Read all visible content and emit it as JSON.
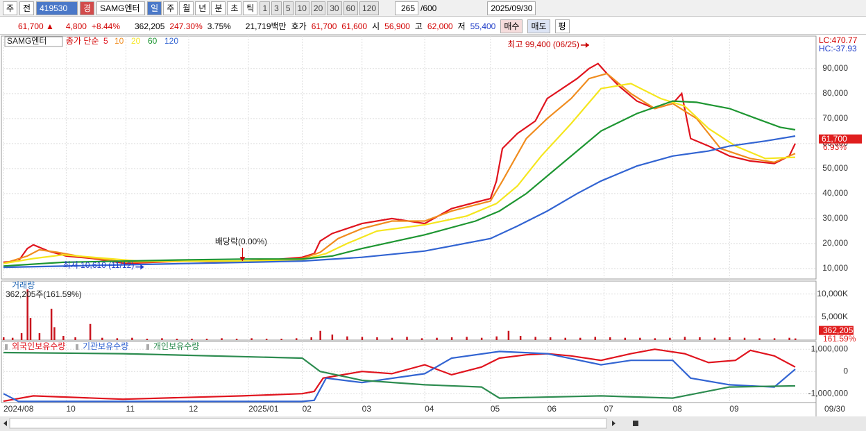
{
  "toolbar": {
    "market": "주",
    "prev": "전",
    "code": "419530",
    "badge": "경",
    "name": "SAMG엔터",
    "periods": [
      "일",
      "주",
      "월",
      "년",
      "분",
      "초",
      "틱"
    ],
    "intervals": [
      "1",
      "3",
      "5",
      "10",
      "20",
      "30",
      "60",
      "120"
    ],
    "count": "265",
    "count_max": "/600",
    "date": "2025/09/30"
  },
  "infobar": {
    "price": "61,700 ▲",
    "change": "4,800",
    "change_pct": "+8.44%",
    "volume": "362,205",
    "volume_ratio": "247.30%",
    "turnover": "3.75%",
    "amount": "21,719백만",
    "quote_label": "호가",
    "ask": "61,700",
    "bid": "61,600",
    "open_label": "시",
    "open": "56,900",
    "high_label": "고",
    "high": "62,000",
    "low_label": "저",
    "low": "55,400",
    "buy": "매수",
    "sell": "매도",
    "avg": "평"
  },
  "chart_data": [
    {
      "type": "line",
      "title": "SAMG엔터",
      "legend_prefix": "종가 단순",
      "series": [
        {
          "name": "5",
          "color": "#e0141e",
          "x": [
            0,
            5,
            8,
            10,
            15,
            21,
            30,
            41,
            50,
            62,
            70,
            82,
            90,
            100,
            104,
            106,
            110,
            120,
            130,
            141,
            150,
            158,
            163,
            165,
            167,
            172,
            178,
            182,
            187,
            192,
            196,
            199,
            202,
            206,
            212,
            218,
            224,
            227,
            230,
            236,
            243,
            250,
            258,
            263,
            265
          ],
          "values": [
            12500,
            13000,
            18000,
            19500,
            17000,
            15000,
            14000,
            12000,
            12500,
            13000,
            12800,
            13000,
            13500,
            14500,
            16000,
            21000,
            24000,
            28000,
            30000,
            28000,
            34000,
            36500,
            38000,
            45000,
            58000,
            64000,
            69000,
            78000,
            82000,
            86000,
            90000,
            92000,
            88000,
            83000,
            77000,
            74000,
            76000,
            80000,
            62000,
            59000,
            55000,
            53000,
            52000,
            55000,
            60000
          ]
        },
        {
          "name": "10",
          "color": "#f08c1e",
          "x": [
            0,
            8,
            12,
            18,
            25,
            41,
            62,
            82,
            100,
            106,
            112,
            120,
            130,
            141,
            150,
            163,
            167,
            175,
            182,
            190,
            196,
            202,
            210,
            218,
            224,
            232,
            240,
            250,
            258,
            265
          ],
          "values": [
            12000,
            15000,
            17500,
            16500,
            15000,
            12500,
            13000,
            13000,
            14000,
            16500,
            22000,
            26000,
            29000,
            29000,
            33000,
            37000,
            45000,
            62000,
            70000,
            78000,
            86000,
            88000,
            80000,
            74000,
            76000,
            70000,
            58000,
            54000,
            52500,
            56000
          ]
        },
        {
          "name": "20",
          "color": "#f5e61e",
          "x": [
            0,
            10,
            20,
            30,
            45,
            62,
            82,
            100,
            108,
            115,
            125,
            141,
            155,
            165,
            172,
            180,
            190,
            200,
            210,
            220,
            228,
            236,
            245,
            255,
            265
          ],
          "values": [
            12000,
            14000,
            15500,
            14500,
            13000,
            13000,
            13000,
            13500,
            16000,
            20000,
            25000,
            27500,
            31000,
            36000,
            43000,
            55000,
            68000,
            82000,
            84000,
            78000,
            75000,
            66000,
            59000,
            54000,
            54500
          ]
        },
        {
          "name": "60",
          "color": "#1e9632",
          "x": [
            0,
            20,
            41,
            62,
            82,
            100,
            110,
            120,
            141,
            158,
            166,
            175,
            182,
            192,
            200,
            212,
            224,
            232,
            243,
            252,
            260,
            265
          ],
          "values": [
            11000,
            12500,
            13000,
            13500,
            13800,
            13800,
            15000,
            18000,
            23500,
            29000,
            33000,
            40000,
            47000,
            57000,
            65000,
            72000,
            77000,
            76500,
            74000,
            70000,
            66500,
            65500
          ]
        },
        {
          "name": "120",
          "color": "#3264d2",
          "x": [
            0,
            41,
            82,
            100,
            120,
            141,
            163,
            172,
            182,
            192,
            200,
            212,
            224,
            236,
            243,
            255,
            265
          ],
          "values": [
            10500,
            11500,
            12500,
            13000,
            14500,
            17000,
            22000,
            27000,
            33000,
            40000,
            45000,
            51000,
            55000,
            57000,
            59000,
            61000,
            63000
          ]
        }
      ],
      "xlim": [
        0,
        265
      ],
      "xticks": [
        {
          "value": 0,
          "label": "2024/08"
        },
        {
          "value": 21,
          "label": "10"
        },
        {
          "value": 41,
          "label": "11"
        },
        {
          "value": 62,
          "label": "12"
        },
        {
          "value": 82,
          "label": "2025/01"
        },
        {
          "value": 100,
          "label": "02"
        },
        {
          "value": 120,
          "label": "03"
        },
        {
          "value": 141,
          "label": "04"
        },
        {
          "value": 163,
          "label": "05"
        },
        {
          "value": 182,
          "label": "06"
        },
        {
          "value": 201,
          "label": "07"
        },
        {
          "value": 224,
          "label": "08"
        },
        {
          "value": 243,
          "label": "09"
        }
      ],
      "x_end_label": "09/30",
      "ylim": [
        5800,
        103000
      ],
      "yticks": [
        {
          "value": 10000,
          "label": "10,000"
        },
        {
          "value": 20000,
          "label": "20,000"
        },
        {
          "value": 30000,
          "label": "30,000"
        },
        {
          "value": 40000,
          "label": "40,000"
        },
        {
          "value": 50000,
          "label": "50,000"
        },
        {
          "value": 60000,
          "label": "60,000"
        },
        {
          "value": 70000,
          "label": "70,000"
        },
        {
          "value": 80000,
          "label": "80,000"
        },
        {
          "value": 90000,
          "label": "90,000"
        }
      ],
      "grid": true,
      "annotations": [
        {
          "text": "최고 99,400 (06/25)",
          "x": 196,
          "value": 99400
        },
        {
          "text": "최저 10,610 (11/12)",
          "x": 47,
          "value": 10610
        },
        {
          "text": "배당락(0.00%)",
          "x": 80,
          "value": 13000
        }
      ],
      "lc": "LC:470.77",
      "hc": "HC:-37.93",
      "price_tag": {
        "value": 61700,
        "label": "61,700"
      },
      "change_tag": "6.93%"
    },
    {
      "type": "bar",
      "title": "거래량",
      "subtitle": "362,205주(161.59%)",
      "color": "#c8141e",
      "x": [
        0,
        3,
        6,
        8,
        9,
        12,
        16,
        17,
        20,
        24,
        29,
        33,
        38,
        43,
        48,
        53,
        58,
        63,
        68,
        73,
        78,
        83,
        88,
        93,
        98,
        103,
        106,
        110,
        115,
        120,
        125,
        130,
        135,
        140,
        145,
        150,
        155,
        160,
        165,
        169,
        173,
        178,
        183,
        188,
        193,
        198,
        203,
        208,
        213,
        218,
        223,
        228,
        233,
        238,
        243,
        248,
        253,
        258,
        263,
        265
      ],
      "values": [
        600000,
        500000,
        1500000,
        11000000,
        4800000,
        1500000,
        6800000,
        2800000,
        900000,
        600000,
        3500000,
        500000,
        400000,
        500000,
        300000,
        400000,
        300000,
        300000,
        300000,
        400000,
        300000,
        400000,
        300000,
        300000,
        400000,
        600000,
        2000000,
        1200000,
        800000,
        700000,
        600000,
        500000,
        700000,
        400000,
        500000,
        600000,
        700000,
        500000,
        800000,
        2000000,
        900000,
        700000,
        600000,
        500000,
        500000,
        700000,
        600000,
        500000,
        500000,
        400000,
        500000,
        700000,
        600000,
        500000,
        600000,
        500000,
        400000,
        400000,
        500000,
        362205
      ],
      "xlim": [
        0,
        265
      ],
      "ylim": [
        0,
        12800000
      ],
      "yticks": [
        {
          "value": 5000000,
          "label": "5,000K"
        },
        {
          "value": 10000000,
          "label": "10,000K"
        }
      ],
      "value_tag": {
        "value": 362205,
        "label": "362,205"
      },
      "ratio_tag": "161.59%"
    },
    {
      "type": "line",
      "series": [
        {
          "name": "외국인보유수량",
          "color": "#e0141e",
          "x": [
            0,
            10,
            40,
            80,
            100,
            104,
            107,
            120,
            130,
            141,
            150,
            160,
            166,
            175,
            182,
            190,
            200,
            210,
            218,
            228,
            232,
            236,
            245,
            250,
            258,
            265
          ],
          "values": [
            -1340000,
            -1100000,
            -1250000,
            -1100000,
            -1000000,
            -900000,
            -300000,
            0,
            -100000,
            300000,
            -150000,
            200000,
            600000,
            750000,
            800000,
            700000,
            500000,
            800000,
            1000000,
            800000,
            600000,
            400000,
            500000,
            950000,
            700000,
            200000
          ]
        },
        {
          "name": "기관보유수량",
          "color": "#3264d2",
          "x": [
            0,
            5,
            100,
            104,
            108,
            120,
            141,
            150,
            166,
            182,
            200,
            210,
            224,
            230,
            243,
            250,
            258,
            265
          ],
          "values": [
            -1000000,
            -1350000,
            -1350000,
            -1300000,
            -300000,
            -500000,
            -100000,
            600000,
            900000,
            800000,
            300000,
            500000,
            500000,
            -300000,
            -600000,
            -650000,
            -700000,
            100000
          ]
        },
        {
          "name": "개인보유수량",
          "color": "#2d8c50",
          "x": [
            0,
            40,
            100,
            106,
            120,
            141,
            160,
            166,
            200,
            224,
            243,
            265
          ],
          "values": [
            850000,
            800000,
            600000,
            0,
            -400000,
            -600000,
            -700000,
            -1200000,
            -1100000,
            -1200000,
            -700000,
            -650000
          ]
        }
      ],
      "xlim": [
        0,
        265
      ],
      "ylim": [
        -1400000,
        1350000
      ],
      "yticks": [
        {
          "value": -1000000,
          "label": "-1,000,000"
        },
        0,
        {
          "value": 1000000,
          "label": "1,000,000"
        }
      ]
    }
  ]
}
